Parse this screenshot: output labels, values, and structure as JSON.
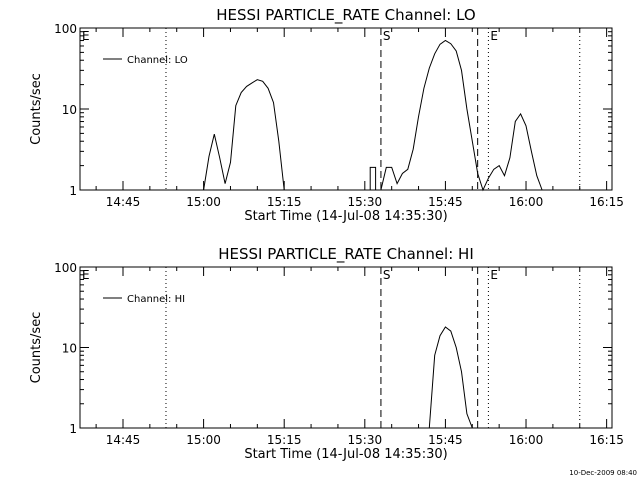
{
  "chart_data": [
    {
      "type": "line",
      "title": "HESSI PARTICLE_RATE Channel: LO",
      "xlabel": "Start Time (14-Jul-08 14:35:30)",
      "ylabel": "Counts/sec",
      "yscale": "log",
      "ylim": [
        1,
        100
      ],
      "xlim": [
        "14:37",
        "16:16"
      ],
      "x_tick_labels": [
        "14:45",
        "15:00",
        "15:15",
        "15:30",
        "15:45",
        "16:00",
        "16:15"
      ],
      "y_tick_labels": [
        "1",
        "10",
        "100"
      ],
      "grid": false,
      "legend": {
        "position": "top-left",
        "entries": [
          "Channel: LO"
        ]
      },
      "markers": [
        {
          "label": "E",
          "time": "14:37",
          "style": "none"
        },
        {
          "label": "",
          "time": "14:53",
          "style": "dotted"
        },
        {
          "label": "S",
          "time": "15:33",
          "style": "dashed"
        },
        {
          "label": "",
          "time": "15:51",
          "style": "dashed"
        },
        {
          "label": "E",
          "time": "15:53",
          "style": "dotted"
        },
        {
          "label": "",
          "time": "16:10",
          "style": "dotted"
        }
      ],
      "series": [
        {
          "label": "Channel: LO",
          "points": [
            [
              "15:00",
              1
            ],
            [
              "15:01",
              2.6
            ],
            [
              "15:02",
              4.9
            ],
            [
              "15:03",
              2.5
            ],
            [
              "15:04",
              1.2
            ],
            [
              "15:05",
              2.2
            ],
            [
              "15:06",
              11
            ],
            [
              "15:07",
              16
            ],
            [
              "15:08",
              19
            ],
            [
              "15:09",
              21
            ],
            [
              "15:10",
              23
            ],
            [
              "15:11",
              22
            ],
            [
              "15:12",
              18
            ],
            [
              "15:13",
              12
            ],
            [
              "15:14",
              4
            ],
            [
              "15:15",
              1
            ],
            [
              "15:31",
              1
            ],
            [
              "15:31",
              1.9
            ],
            [
              "15:32",
              1.9
            ],
            [
              "15:32",
              1
            ],
            [
              "15:33",
              1
            ],
            [
              "15:34",
              1.9
            ],
            [
              "15:35",
              1.9
            ],
            [
              "15:36",
              1.2
            ],
            [
              "15:37",
              1.6
            ],
            [
              "15:38",
              1.8
            ],
            [
              "15:39",
              3.2
            ],
            [
              "15:40",
              8
            ],
            [
              "15:41",
              18
            ],
            [
              "15:42",
              32
            ],
            [
              "15:43",
              48
            ],
            [
              "15:44",
              63
            ],
            [
              "15:45",
              70
            ],
            [
              "15:46",
              64
            ],
            [
              "15:47",
              52
            ],
            [
              "15:48",
              30
            ],
            [
              "15:49",
              10
            ],
            [
              "15:50",
              4
            ],
            [
              "15:51",
              1.6
            ],
            [
              "15:52",
              1
            ],
            [
              "15:53",
              1.4
            ],
            [
              "15:54",
              1.8
            ],
            [
              "15:55",
              2
            ],
            [
              "15:56",
              1.5
            ],
            [
              "15:57",
              2.5
            ],
            [
              "15:58",
              7
            ],
            [
              "15:59",
              8.7
            ],
            [
              "16:00",
              6.2
            ],
            [
              "16:01",
              3
            ],
            [
              "16:02",
              1.5
            ],
            [
              "16:03",
              1
            ]
          ]
        }
      ]
    },
    {
      "type": "line",
      "title": "HESSI PARTICLE_RATE Channel: HI",
      "xlabel": "Start Time (14-Jul-08 14:35:30)",
      "ylabel": "Counts/sec",
      "yscale": "log",
      "ylim": [
        1,
        100
      ],
      "xlim": [
        "14:37",
        "16:16"
      ],
      "x_tick_labels": [
        "14:45",
        "15:00",
        "15:15",
        "15:30",
        "15:45",
        "16:00",
        "16:15"
      ],
      "y_tick_labels": [
        "1",
        "10",
        "100"
      ],
      "grid": false,
      "legend": {
        "position": "top-left",
        "entries": [
          "Channel: HI"
        ]
      },
      "markers": [
        {
          "label": "E",
          "time": "14:37",
          "style": "none"
        },
        {
          "label": "",
          "time": "14:53",
          "style": "dotted"
        },
        {
          "label": "S",
          "time": "15:33",
          "style": "dashed"
        },
        {
          "label": "",
          "time": "15:51",
          "style": "dashed"
        },
        {
          "label": "E",
          "time": "15:53",
          "style": "dotted"
        },
        {
          "label": "",
          "time": "16:10",
          "style": "dotted"
        }
      ],
      "series": [
        {
          "label": "Channel: HI",
          "points": [
            [
              "15:42",
              1
            ],
            [
              "15:43",
              8
            ],
            [
              "15:44",
              14
            ],
            [
              "15:45",
              18
            ],
            [
              "15:46",
              16
            ],
            [
              "15:47",
              10
            ],
            [
              "15:48",
              5
            ],
            [
              "15:49",
              1.5
            ],
            [
              "15:50",
              1
            ]
          ]
        }
      ]
    }
  ],
  "footer": {
    "timestamp": "10-Dec-2009 08:40"
  }
}
